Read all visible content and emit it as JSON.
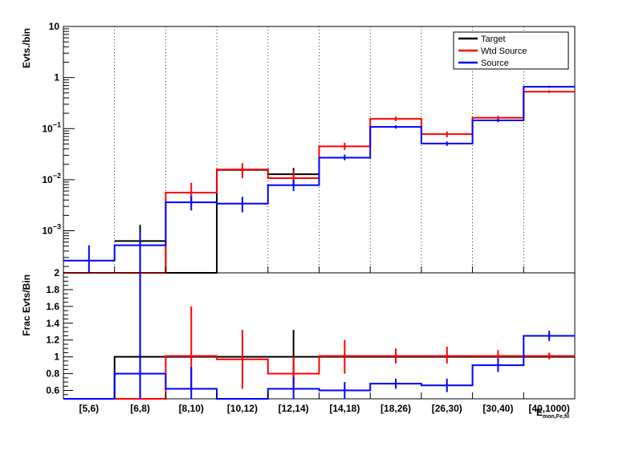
{
  "chart_data": [
    {
      "type": "histogram",
      "panel": "top",
      "ylabel": "Evts./bin",
      "yscale": "log",
      "ylim": [
        0.00015,
        10
      ],
      "y_ticks": [
        {
          "value": 10,
          "label": "10"
        },
        {
          "value": 1,
          "label": "1"
        },
        {
          "value": 0.1,
          "label": "10",
          "exp": "−1"
        },
        {
          "value": 0.01,
          "label": "10",
          "exp": "−2"
        },
        {
          "value": 0.001,
          "label": "10",
          "exp": "−3"
        }
      ],
      "categories": [
        "[5,6)",
        "[6,8)",
        "[8,10)",
        "[10,12)",
        "[12,14)",
        "[14,18)",
        "[18,26)",
        "[26,30)",
        "[30,40)",
        "[40,1000)"
      ],
      "grid_x": true,
      "legend_position": "top-right",
      "series": [
        {
          "name": "Target",
          "color": "#000000",
          "values": [
            null,
            0.00063,
            0,
            0.0155,
            0.0128,
            null,
            null,
            null,
            null,
            null
          ],
          "errors": [
            [
              null,
              null
            ],
            [
              0.00015,
              0.0013
            ],
            null,
            [
              0.011,
              0.021
            ],
            [
              0.0085,
              0.017
            ],
            null,
            null,
            null,
            null,
            null
          ]
        },
        {
          "name": "Wtd Source",
          "color": "#ff0000",
          "values": [
            0,
            0,
            0.0056,
            0.0158,
            0.0107,
            0.045,
            0.155,
            0.078,
            0.163,
            0.53
          ],
          "errors": [
            null,
            null,
            [
              0.0033,
              0.0087
            ],
            [
              0.0107,
              0.021
            ],
            [
              0.0075,
              0.015
            ],
            [
              0.038,
              0.053
            ],
            [
              0.14,
              0.172
            ],
            [
              0.068,
              0.088
            ],
            [
              0.148,
              0.178
            ],
            [
              0.5,
              0.56
            ]
          ]
        },
        {
          "name": "Source",
          "color": "#0000ff",
          "values": [
            0.00026,
            0.00052,
            0.0036,
            0.0034,
            0.0078,
            0.027,
            0.108,
            0.051,
            0.145,
            0.66
          ],
          "errors": [
            [
              0.00013,
              0.00052
            ],
            [
              0.00015,
              0.00095
            ],
            [
              0.0025,
              0.0048
            ],
            [
              0.0023,
              0.0046
            ],
            [
              0.006,
              0.0097
            ],
            [
              0.024,
              0.031
            ],
            [
              0.1,
              0.116
            ],
            [
              0.046,
              0.056
            ],
            [
              0.134,
              0.156
            ],
            [
              0.63,
              0.69
            ]
          ]
        }
      ]
    },
    {
      "type": "histogram",
      "panel": "bottom",
      "ylabel": "Frac Evts/Bin",
      "xlabel": "E",
      "xlabel_sub": "mon,Fe,fil",
      "ylim": [
        0.5,
        2
      ],
      "y_ticks": [
        "0.6",
        "0.8",
        "1",
        "1.2",
        "1.4",
        "1.6",
        "1.8",
        "2"
      ],
      "categories": [
        "[5,6)",
        "[6,8)",
        "[8,10)",
        "[10,12)",
        "[12,14)",
        "[14,18)",
        "[18,26)",
        "[26,30)",
        "[30,40)",
        "[40,1000)"
      ],
      "series": [
        {
          "name": "Target",
          "color": "#000000",
          "values": [
            0.5,
            1.0,
            1.0,
            1.0,
            1.0,
            1.0,
            1.0,
            1.0,
            1.0,
            1.0
          ],
          "errors": [
            null,
            [
              0.5,
              2.0
            ],
            null,
            null,
            [
              0.68,
              1.32
            ],
            null,
            null,
            null,
            null,
            null
          ]
        },
        {
          "name": "Wtd Source",
          "color": "#ff0000",
          "values": [
            0.5,
            0.5,
            1.01,
            0.97,
            0.8,
            1.01,
            1.01,
            1.01,
            1.01,
            1.01
          ],
          "errors": [
            null,
            null,
            [
              0.6,
              1.6
            ],
            [
              0.62,
              1.32
            ],
            [
              0.6,
              1.0
            ],
            [
              0.8,
              1.2
            ],
            [
              0.92,
              1.1
            ],
            [
              0.92,
              1.12
            ],
            [
              0.94,
              1.08
            ],
            [
              0.97,
              1.05
            ]
          ]
        },
        {
          "name": "Source",
          "color": "#0000ff",
          "values": [
            0.5,
            0.8,
            0.62,
            0.5,
            0.62,
            0.6,
            0.68,
            0.66,
            0.9,
            1.25
          ],
          "errors": [
            null,
            [
              0.5,
              2.0
            ],
            [
              0.5,
              0.88
            ],
            null,
            [
              0.5,
              0.76
            ],
            [
              0.5,
              0.7
            ],
            [
              0.62,
              0.74
            ],
            [
              0.58,
              0.74
            ],
            [
              0.82,
              0.98
            ],
            [
              1.19,
              1.31
            ]
          ]
        }
      ]
    }
  ]
}
